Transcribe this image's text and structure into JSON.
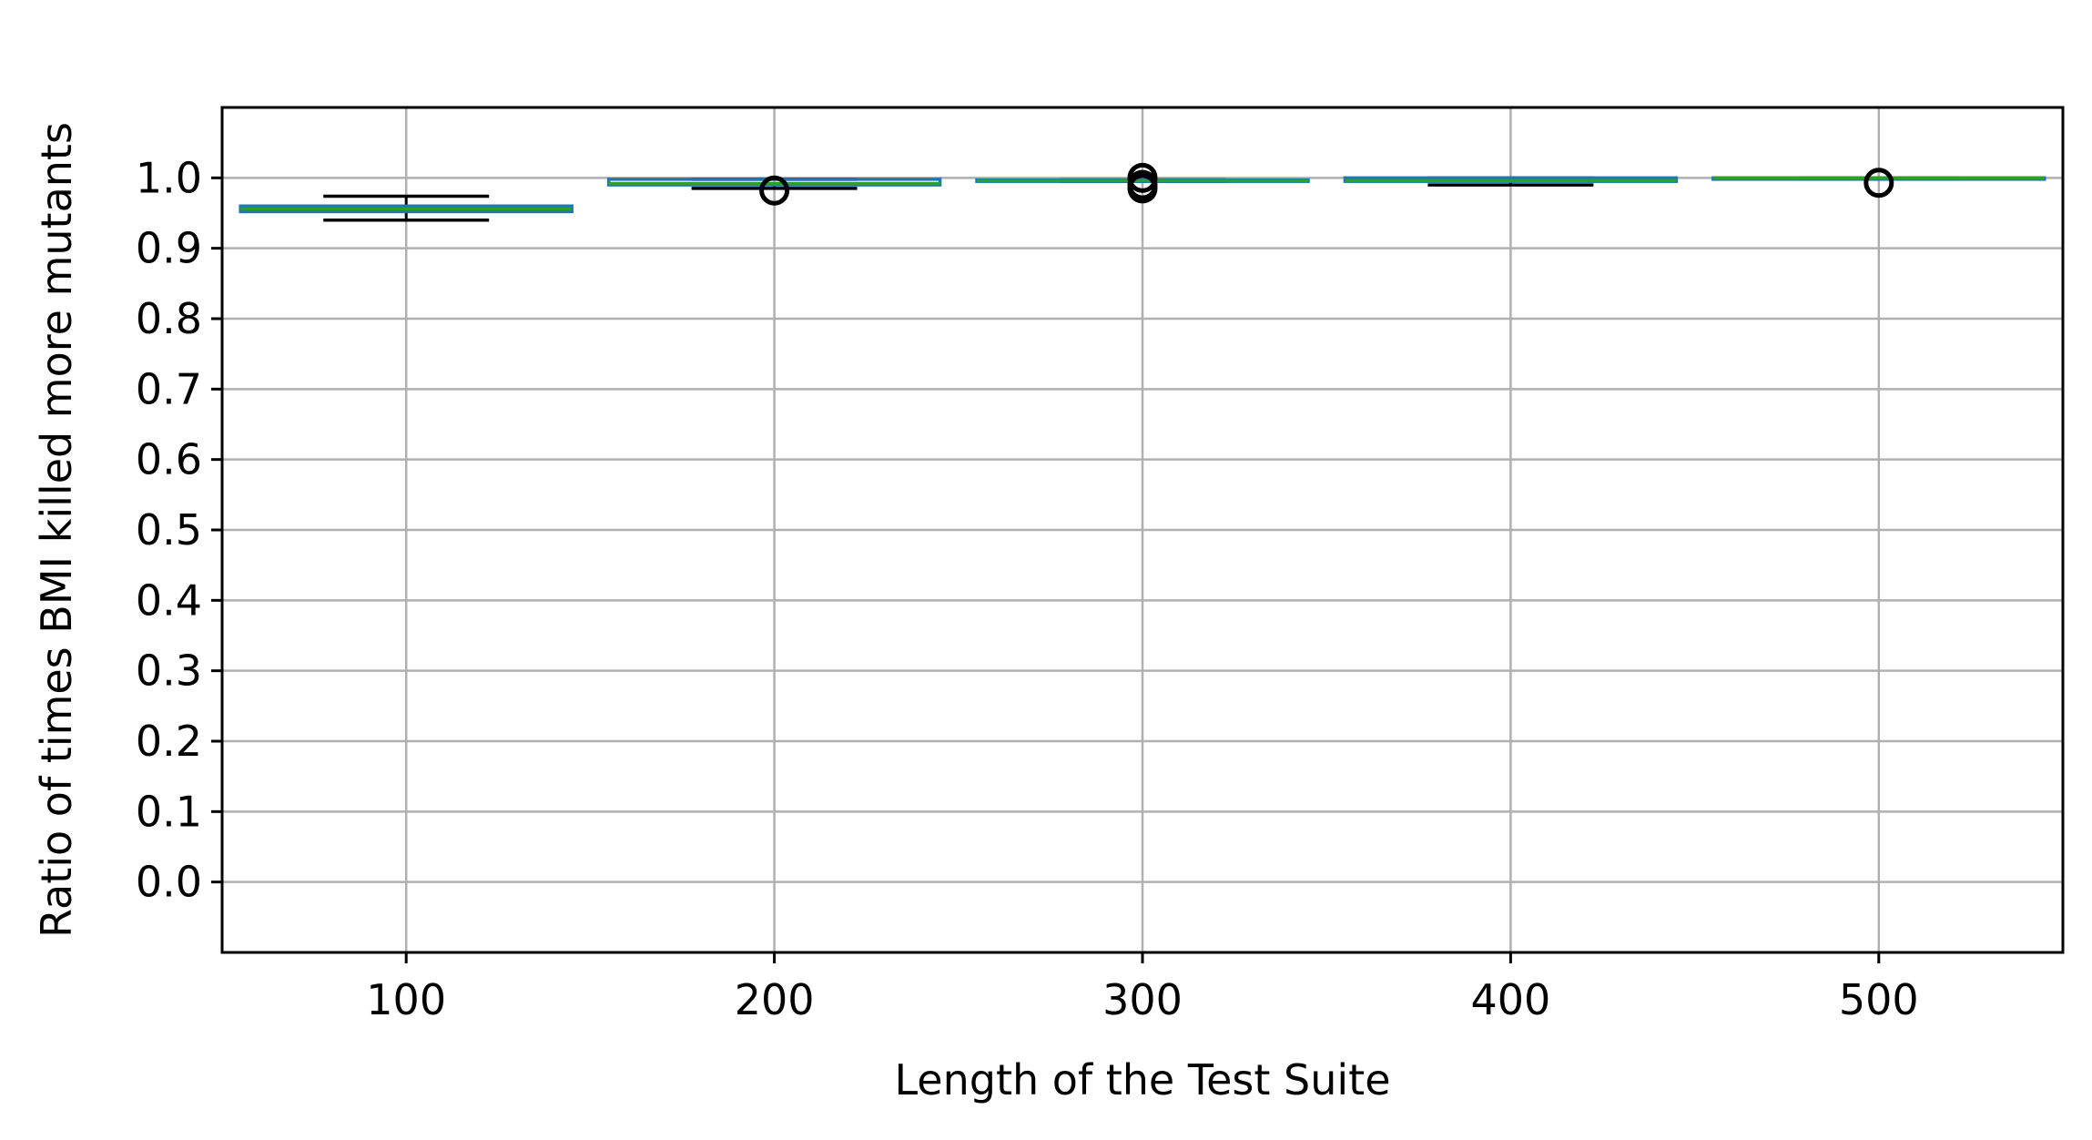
{
  "chart_data": {
    "type": "box",
    "title": "",
    "xlabel": "Length of the Test Suite",
    "ylabel": "Ratio of times BMI killed more mutants",
    "categories": [
      "100",
      "200",
      "300",
      "400",
      "500"
    ],
    "yticks": [
      "0.0",
      "0.1",
      "0.2",
      "0.3",
      "0.4",
      "0.5",
      "0.6",
      "0.7",
      "0.8",
      "0.9",
      "1.0"
    ],
    "ylim": [
      -0.1,
      1.1
    ],
    "grid": true,
    "colors": {
      "box": "#1f77b4",
      "median": "#2ca02c",
      "whisker": "#000000",
      "grid": "#b0b0b0"
    },
    "boxes": [
      {
        "label": "100",
        "whislo": 0.94,
        "q1": 0.952,
        "med": 0.956,
        "q3": 0.96,
        "whishi": 0.974,
        "fliers": []
      },
      {
        "label": "200",
        "whislo": 0.985,
        "q1": 0.99,
        "med": 0.992,
        "q3": 0.998,
        "whishi": 0.998,
        "fliers": [
          0.982
        ]
      },
      {
        "label": "300",
        "whislo": 0.995,
        "q1": 0.995,
        "med": 0.996,
        "q3": 0.997,
        "whishi": 0.997,
        "fliers": [
          0.985,
          0.99,
          1.0
        ]
      },
      {
        "label": "400",
        "whislo": 0.99,
        "q1": 0.995,
        "med": 0.996,
        "q3": 1.0,
        "whishi": 1.0,
        "fliers": []
      },
      {
        "label": "500",
        "whislo": 1.0,
        "q1": 1.0,
        "med": 1.0,
        "q3": 1.0,
        "whishi": 1.0,
        "fliers": [
          0.993
        ]
      }
    ]
  }
}
